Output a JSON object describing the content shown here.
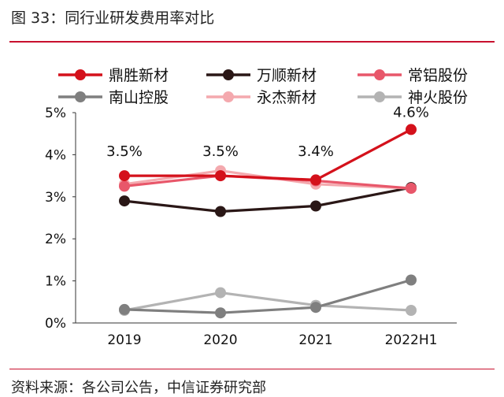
{
  "figure": {
    "title": "图 33：同行业研发费用率对比",
    "source": "资料来源：各公司公告，中信证券研究部"
  },
  "chart_data": {
    "type": "line",
    "categories": [
      "2019",
      "2020",
      "2021",
      "2022H1"
    ],
    "y_ticks": [
      "0%",
      "1%",
      "2%",
      "3%",
      "4%",
      "5%"
    ],
    "ylim": [
      0,
      5
    ],
    "y_unit": "%",
    "grid": false,
    "legend_position": "top",
    "series": [
      {
        "name": "鼎胜新材",
        "color": "#d4111b",
        "values": [
          3.5,
          3.5,
          3.4,
          4.6
        ],
        "labels": [
          "3.5%",
          "3.5%",
          "3.4%",
          "4.6%"
        ]
      },
      {
        "name": "万顺新材",
        "color": "#2a1716",
        "values": [
          2.9,
          2.65,
          2.78,
          3.22
        ]
      },
      {
        "name": "常铝股份",
        "color": "#e8576a",
        "values": [
          3.25,
          3.5,
          3.38,
          3.2
        ]
      },
      {
        "name": "南山控股",
        "color": "#7f7f7f",
        "values": [
          0.32,
          0.24,
          0.37,
          1.02
        ]
      },
      {
        "name": "永杰新材",
        "color": "#f4a9ae",
        "values": [
          3.3,
          3.62,
          3.3,
          3.2
        ]
      },
      {
        "name": "神火股份",
        "color": "#b3b3b3",
        "values": [
          0.3,
          0.72,
          0.42,
          0.3
        ]
      }
    ]
  }
}
